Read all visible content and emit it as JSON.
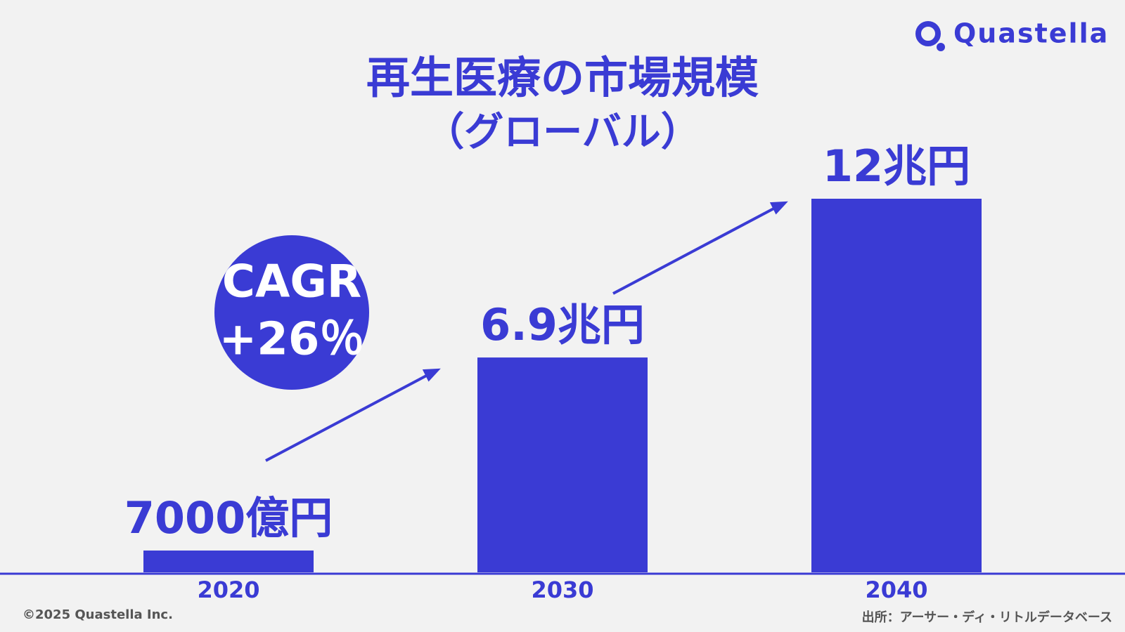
{
  "chart_data": {
    "type": "bar",
    "title": "再生医療の市場規模",
    "subtitle": "（グローバル）",
    "categories": [
      "2020",
      "2030",
      "2040"
    ],
    "values": [
      0.7,
      6.9,
      12
    ],
    "value_labels": [
      "7000億円",
      "6.9兆円",
      "12兆円"
    ],
    "color": "#3a3bd4",
    "annotations": [
      "CAGR",
      "+26％"
    ],
    "logo": "Quastella",
    "copyright": "©2025 Quastella Inc.",
    "source": "出所：アーサー・ディ・リトルデータベース"
  }
}
